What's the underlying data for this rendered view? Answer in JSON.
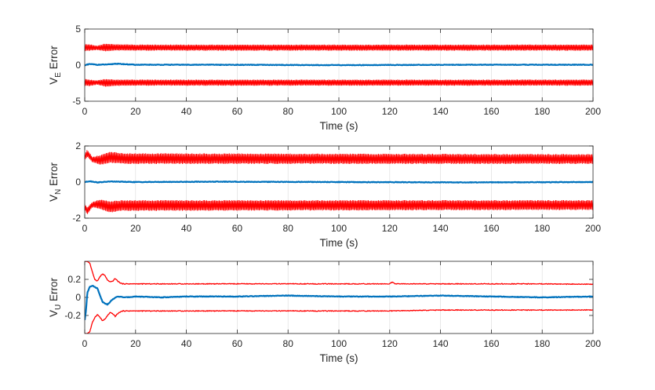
{
  "chart_data": [
    {
      "type": "line",
      "xlabel": "Time (s)",
      "ylabel": {
        "main": "V",
        "sub": "E",
        "suffix": " Error"
      },
      "xlim": [
        0,
        200
      ],
      "ylim": [
        -5,
        5
      ],
      "xticks": [
        "0",
        "20",
        "40",
        "60",
        "80",
        "100",
        "120",
        "140",
        "160",
        "180",
        "200"
      ],
      "yticks": [
        {
          "value": 5,
          "label": "5"
        },
        {
          "value": 0,
          "label": "0"
        },
        {
          "value": -5,
          "label": "-5"
        }
      ],
      "grid": "x",
      "colors": {
        "error": "#0072BD",
        "bound": "#FF0000"
      },
      "series": [
        {
          "role": "error",
          "x": [
            0,
            2,
            5,
            10,
            12,
            20,
            50,
            100,
            150,
            200
          ],
          "values": [
            0.0,
            0.15,
            0.05,
            0.1,
            0.2,
            0.05,
            0.05,
            0.0,
            0.05,
            0.05
          ]
        },
        {
          "role": "upper-bound-max",
          "x": [
            0,
            2,
            5,
            8,
            12,
            20,
            200
          ],
          "values": [
            2.9,
            2.9,
            2.7,
            3.0,
            2.9,
            2.85,
            2.85
          ]
        },
        {
          "role": "upper-bound-min",
          "x": [
            0,
            2,
            5,
            8,
            12,
            20,
            200
          ],
          "values": [
            1.9,
            2.0,
            2.1,
            1.9,
            2.0,
            2.0,
            2.0
          ]
        },
        {
          "role": "lower-bound-max",
          "x": [
            0,
            2,
            5,
            8,
            12,
            20,
            200
          ],
          "values": [
            -1.9,
            -2.0,
            -2.1,
            -1.9,
            -2.0,
            -2.0,
            -2.0
          ]
        },
        {
          "role": "lower-bound-min",
          "x": [
            0,
            2,
            5,
            8,
            12,
            20,
            200
          ],
          "values": [
            -2.9,
            -2.9,
            -2.7,
            -3.0,
            -2.9,
            -2.85,
            -2.85
          ]
        }
      ]
    },
    {
      "type": "line",
      "xlabel": "Time (s)",
      "ylabel": {
        "main": "V",
        "sub": "N",
        "suffix": " Error"
      },
      "xlim": [
        0,
        200
      ],
      "ylim": [
        -2,
        2
      ],
      "xticks": [
        "0",
        "20",
        "40",
        "60",
        "80",
        "100",
        "120",
        "140",
        "160",
        "180",
        "200"
      ],
      "yticks": [
        {
          "value": 2,
          "label": "2"
        },
        {
          "value": 0,
          "label": "0"
        },
        {
          "value": -2,
          "label": "-2"
        }
      ],
      "grid": "x",
      "colors": {
        "error": "#0072BD",
        "bound": "#FF0000"
      },
      "series": [
        {
          "role": "error",
          "x": [
            0,
            2,
            5,
            10,
            20,
            50,
            100,
            150,
            200
          ],
          "values": [
            0.0,
            0.05,
            -0.02,
            0.03,
            0.0,
            0.02,
            0.0,
            -0.02,
            0.0
          ]
        },
        {
          "role": "upper-bound-max",
          "x": [
            0,
            1,
            3,
            6,
            10,
            15,
            200
          ],
          "values": [
            1.55,
            1.8,
            1.4,
            1.5,
            1.7,
            1.6,
            1.55
          ]
        },
        {
          "role": "upper-bound-min",
          "x": [
            0,
            1,
            3,
            6,
            10,
            15,
            200
          ],
          "values": [
            1.2,
            1.4,
            1.1,
            0.95,
            1.05,
            1.0,
            1.0
          ]
        },
        {
          "role": "lower-bound-max",
          "x": [
            0,
            1,
            3,
            6,
            10,
            15,
            200
          ],
          "values": [
            -1.2,
            -1.4,
            -1.1,
            -0.95,
            -1.05,
            -1.0,
            -1.0
          ]
        },
        {
          "role": "lower-bound-min",
          "x": [
            0,
            1,
            3,
            6,
            10,
            15,
            200
          ],
          "values": [
            -1.55,
            -1.8,
            -1.4,
            -1.5,
            -1.7,
            -1.6,
            -1.55
          ]
        }
      ]
    },
    {
      "type": "line",
      "xlabel": "Time (s)",
      "ylabel": {
        "main": "V",
        "sub": "U",
        "suffix": " Error"
      },
      "xlim": [
        0,
        200
      ],
      "ylim": [
        -0.4,
        0.4
      ],
      "xticks": [
        "0",
        "20",
        "40",
        "60",
        "80",
        "100",
        "120",
        "140",
        "160",
        "180",
        "200"
      ],
      "yticks": [
        {
          "value": 0.2,
          "label": "0.2"
        },
        {
          "value": 0,
          "label": "0"
        },
        {
          "value": -0.2,
          "label": "-0.2"
        }
      ],
      "grid": "x",
      "colors": {
        "error": "#0072BD",
        "bound": "#FF0000"
      },
      "series": [
        {
          "role": "error",
          "x": [
            0,
            0.5,
            1,
            2,
            3,
            5,
            7,
            9,
            11,
            13,
            16,
            20,
            30,
            40,
            60,
            80,
            100,
            120,
            140,
            160,
            180,
            200
          ],
          "values": [
            -0.25,
            -0.15,
            0.05,
            0.12,
            0.13,
            0.1,
            -0.05,
            -0.08,
            -0.02,
            0.01,
            0.0,
            0.01,
            0.0,
            0.01,
            0.01,
            0.02,
            0.01,
            0.01,
            0.02,
            0.01,
            0.0,
            0.01
          ]
        },
        {
          "role": "upper-bound",
          "x": [
            0,
            0.5,
            1,
            2,
            3,
            4,
            5,
            6,
            7,
            8,
            9,
            10,
            11,
            12,
            13,
            14,
            15,
            20,
            40,
            60,
            80,
            100,
            120,
            121,
            122,
            140,
            160,
            180,
            200
          ],
          "values": [
            0.4,
            0.4,
            0.4,
            0.38,
            0.28,
            0.2,
            0.18,
            0.23,
            0.26,
            0.24,
            0.19,
            0.17,
            0.18,
            0.21,
            0.18,
            0.16,
            0.15,
            0.15,
            0.15,
            0.15,
            0.15,
            0.15,
            0.15,
            0.17,
            0.15,
            0.15,
            0.15,
            0.15,
            0.145
          ]
        },
        {
          "role": "lower-bound",
          "x": [
            0,
            0.5,
            1,
            2,
            3,
            4,
            5,
            6,
            7,
            8,
            9,
            10,
            11,
            12,
            13,
            14,
            15,
            20,
            40,
            60,
            80,
            100,
            120,
            140,
            160,
            180,
            200
          ],
          "values": [
            -0.4,
            -0.4,
            -0.4,
            -0.38,
            -0.28,
            -0.22,
            -0.19,
            -0.22,
            -0.26,
            -0.24,
            -0.2,
            -0.17,
            -0.18,
            -0.21,
            -0.18,
            -0.16,
            -0.15,
            -0.15,
            -0.15,
            -0.15,
            -0.15,
            -0.15,
            -0.15,
            -0.14,
            -0.14,
            -0.14,
            -0.14
          ]
        }
      ]
    }
  ]
}
